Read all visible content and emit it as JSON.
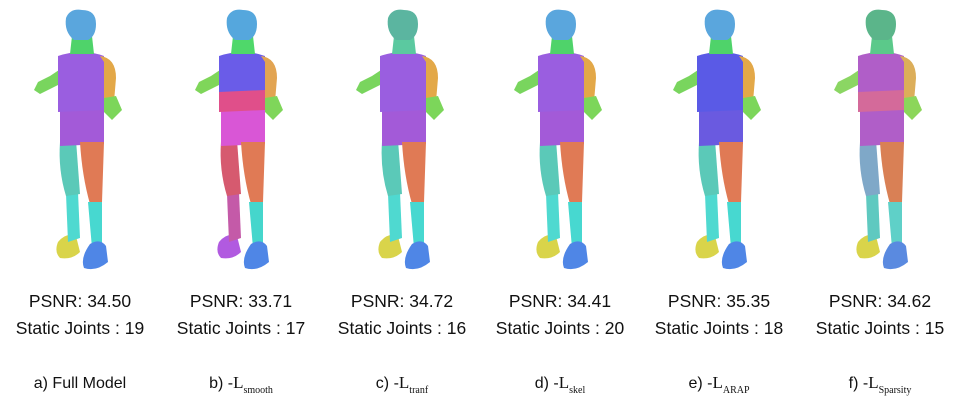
{
  "panels": [
    {
      "psnr": "PSNR: 34.50",
      "joints": "Static Joints : 19",
      "caption_prefix": "a) Full Model",
      "caption_main": "",
      "caption_sub": "",
      "colors": {
        "head": "#5aa6dd",
        "neck": "#4fd36a",
        "torso": "#9a5ee0",
        "torso_low": "#9a5ee0",
        "hips": "#a35ad8",
        "upper_arm_front": "#e3a848",
        "forearm_front": "#7cd65a",
        "arm_back": "#79d55e",
        "thigh_back": "#5bc9b8",
        "shin_back": "#4fd9d0",
        "thigh_front": "#e07a55",
        "shin_front": "#47d8d0",
        "shoe_back": "#d9d44a",
        "shoe_front": "#4f86e6"
      }
    },
    {
      "psnr": "PSNR: 33.71",
      "joints": "Static Joints : 17",
      "caption_prefix": "b) -",
      "caption_main": "L",
      "caption_sub": "smooth",
      "colors": {
        "head": "#55a7dd",
        "neck": "#4fd86a",
        "torso": "#6a5ce8",
        "torso_low": "#e04f8a",
        "hips": "#d956d6",
        "upper_arm_front": "#e2a452",
        "forearm_front": "#7fd65a",
        "arm_back": "#7fd65a",
        "thigh_back": "#d65a6f",
        "shin_back": "#c45aa8",
        "thigh_front": "#e07a55",
        "shin_front": "#45d6cc",
        "shoe_back": "#b15ae0",
        "shoe_front": "#4f86e6"
      }
    },
    {
      "psnr": "PSNR: 34.72",
      "joints": "Static Joints : 16",
      "caption_prefix": "c) -",
      "caption_main": "L",
      "caption_sub": "tranf",
      "colors": {
        "head": "#5bb5a0",
        "neck": "#5bc9a0",
        "torso": "#9a5ee0",
        "torso_low": "#9a5ee0",
        "hips": "#a35ad8",
        "upper_arm_front": "#e3a848",
        "forearm_front": "#7cd65a",
        "arm_back": "#79d55e",
        "thigh_back": "#5bc9b8",
        "shin_back": "#4fd9d0",
        "thigh_front": "#e07a55",
        "shin_front": "#47d8d0",
        "shoe_back": "#d9d44a",
        "shoe_front": "#4f86e6"
      }
    },
    {
      "psnr": "PSNR: 34.41",
      "joints": "Static Joints : 20",
      "caption_prefix": "d) -",
      "caption_main": "L",
      "caption_sub": "skel",
      "colors": {
        "head": "#5aa6dd",
        "neck": "#4fd36a",
        "torso": "#9a5ee0",
        "torso_low": "#9a5ee0",
        "hips": "#a35ad8",
        "upper_arm_front": "#e3a848",
        "forearm_front": "#7cd65a",
        "arm_back": "#79d55e",
        "thigh_back": "#5bc9b8",
        "shin_back": "#4fd9d0",
        "thigh_front": "#e07a55",
        "shin_front": "#47d8d0",
        "shoe_back": "#d9d44a",
        "shoe_front": "#4f86e6"
      }
    },
    {
      "psnr": "PSNR: 35.35",
      "joints": "Static Joints : 18",
      "caption_prefix": "e) -",
      "caption_main": "L",
      "caption_sub": "ARAP",
      "colors": {
        "head": "#5aa6dd",
        "neck": "#4fd36a",
        "torso": "#5a5ae6",
        "torso_low": "#5a5ae6",
        "hips": "#6a5ae0",
        "upper_arm_front": "#e3a848",
        "forearm_front": "#7cd65a",
        "arm_back": "#79d55e",
        "thigh_back": "#5bc9b8",
        "shin_back": "#4fd9d0",
        "thigh_front": "#e07a55",
        "shin_front": "#47d8d0",
        "shoe_back": "#d9d44a",
        "shoe_front": "#4f86e6"
      }
    },
    {
      "psnr": "PSNR: 34.62",
      "joints": "Static Joints : 15",
      "caption_prefix": "f) -",
      "caption_main": "L",
      "caption_sub": "Sparsity",
      "colors": {
        "head": "#5bb58a",
        "neck": "#5bc98a",
        "torso": "#b05ec8",
        "torso_low": "#d46a9a",
        "hips": "#b05ec8",
        "upper_arm_front": "#dcae5a",
        "forearm_front": "#8cd65a",
        "arm_back": "#8bd663",
        "thigh_back": "#7fa8c8",
        "shin_back": "#5fc9c0",
        "thigh_front": "#d98055",
        "shin_front": "#5fd0c8",
        "shoe_back": "#d9d44a",
        "shoe_front": "#5a8ae0"
      }
    }
  ]
}
